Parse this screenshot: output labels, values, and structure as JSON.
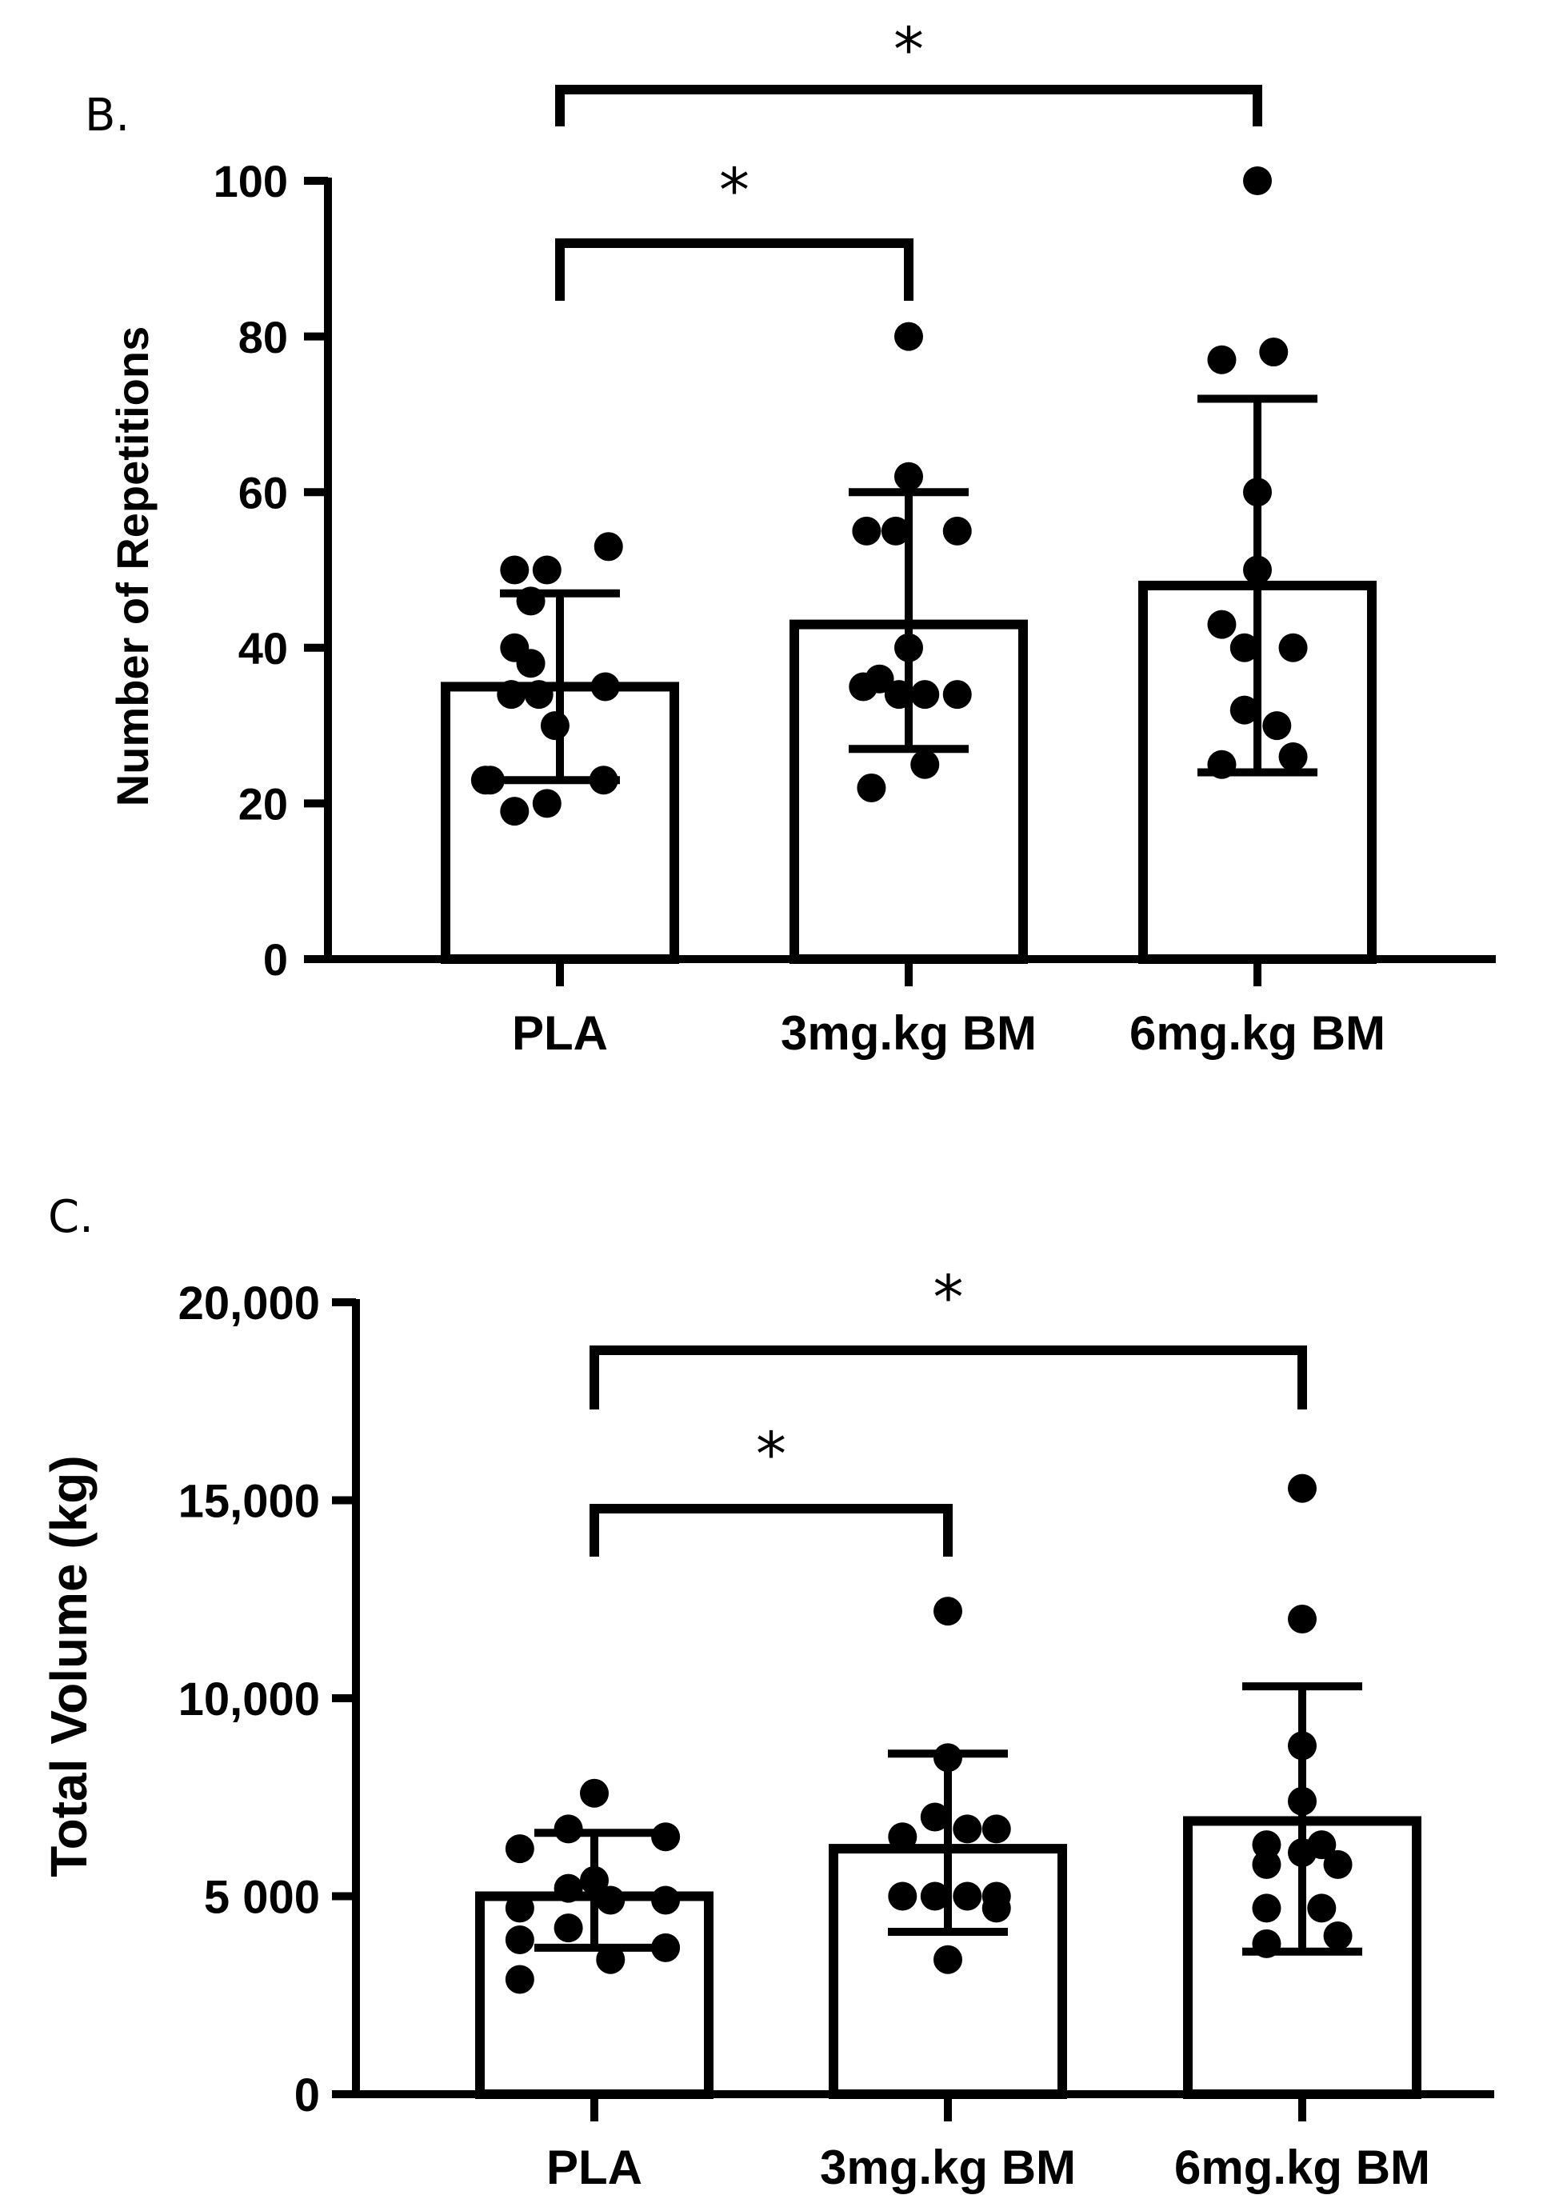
{
  "chart_data": [
    {
      "type": "bar",
      "panel_label": "B.",
      "title": "",
      "xlabel": "",
      "ylabel": "Number of Repetitions",
      "ylim": [
        0,
        100
      ],
      "yticks": [
        0,
        20,
        40,
        60,
        80,
        100
      ],
      "ytick_labels": [
        "0",
        "20",
        "40",
        "60",
        "80",
        "100"
      ],
      "grid": false,
      "categories": [
        "PLA",
        "3mg.kg BM",
        "6mg.kg BM"
      ],
      "means": [
        35,
        43,
        48
      ],
      "sd_upper": [
        47,
        60,
        72
      ],
      "sd_lower": [
        23,
        27,
        24
      ],
      "points": [
        [
          [
            -0.46,
            23
          ],
          [
            -0.28,
            50
          ],
          [
            -0.18,
            46
          ],
          [
            -0.08,
            50
          ],
          [
            0.3,
            53
          ],
          [
            -0.28,
            40
          ],
          [
            -0.18,
            38
          ],
          [
            -0.3,
            34
          ],
          [
            -0.13,
            34
          ],
          [
            0.28,
            35
          ],
          [
            -0.03,
            30
          ],
          [
            -0.28,
            19
          ],
          [
            -0.08,
            20
          ],
          [
            0.27,
            23
          ],
          [
            -0.43,
            23
          ]
        ],
        [
          [
            -0.28,
            35
          ],
          [
            -0.18,
            36
          ],
          [
            -0.26,
            55
          ],
          [
            -0.08,
            55
          ],
          [
            0.3,
            55
          ],
          [
            0,
            62
          ],
          [
            0,
            40
          ],
          [
            -0.06,
            34
          ],
          [
            0.1,
            34
          ],
          [
            0.3,
            34
          ],
          [
            -0.23,
            22
          ],
          [
            0.1,
            25
          ],
          [
            0,
            80
          ]
        ],
        [
          [
            0,
            100
          ],
          [
            -0.22,
            77
          ],
          [
            0.1,
            78
          ],
          [
            0,
            60
          ],
          [
            0,
            50
          ],
          [
            -0.22,
            43
          ],
          [
            -0.08,
            40
          ],
          [
            0.22,
            40
          ],
          [
            -0.08,
            32
          ],
          [
            0.12,
            30
          ],
          [
            -0.22,
            25
          ],
          [
            0.22,
            26
          ]
        ]
      ],
      "significance": [
        {
          "from": "PLA",
          "to": "6mg.kg BM",
          "label": "*"
        },
        {
          "from": "PLA",
          "to": "3mg.kg BM",
          "label": "*"
        }
      ]
    },
    {
      "type": "bar",
      "panel_label": "C.",
      "title": "",
      "xlabel": "",
      "ylabel": "Total Volume (kg)",
      "ylim": [
        0,
        20000
      ],
      "yticks": [
        0,
        5000,
        10000,
        15000,
        20000
      ],
      "ytick_labels": [
        "0",
        "5 000",
        "10,000",
        "15,000",
        "20,000"
      ],
      "grid": false,
      "categories": [
        "PLA",
        "3mg.kg BM",
        "6mg.kg BM"
      ],
      "means": [
        5000,
        6200,
        6900
      ],
      "sd_upper": [
        6600,
        8600,
        10300
      ],
      "sd_lower": [
        3700,
        4100,
        3600
      ],
      "points": [
        [
          [
            -0.46,
            6200
          ],
          [
            0,
            7600
          ],
          [
            -0.16,
            6700
          ],
          [
            0.44,
            6500
          ],
          [
            -0.46,
            4700
          ],
          [
            -0.16,
            5200
          ],
          [
            0,
            5400
          ],
          [
            0.1,
            4900
          ],
          [
            0.44,
            4900
          ],
          [
            -0.46,
            3900
          ],
          [
            -0.16,
            4200
          ],
          [
            0.44,
            3700
          ],
          [
            -0.46,
            2900
          ],
          [
            0.1,
            3400
          ]
        ],
        [
          [
            -0.28,
            6500
          ],
          [
            -0.08,
            7000
          ],
          [
            0.12,
            6700
          ],
          [
            0.3,
            6700
          ],
          [
            0,
            8500
          ],
          [
            -0.28,
            5000
          ],
          [
            -0.08,
            5000
          ],
          [
            0.12,
            5000
          ],
          [
            0.3,
            5000
          ],
          [
            0.3,
            4700
          ],
          [
            0,
            3400
          ],
          [
            0,
            12200
          ]
        ],
        [
          [
            0,
            15300
          ],
          [
            0,
            12000
          ],
          [
            0,
            8800
          ],
          [
            0,
            7400
          ],
          [
            -0.22,
            6300
          ],
          [
            0.12,
            6300
          ],
          [
            -0.22,
            5800
          ],
          [
            0.22,
            5800
          ],
          [
            -0.22,
            4700
          ],
          [
            0.12,
            4700
          ],
          [
            -0.22,
            3800
          ],
          [
            0.22,
            4000
          ],
          [
            0,
            6100
          ]
        ]
      ],
      "significance": [
        {
          "from": "PLA",
          "to": "6mg.kg BM",
          "label": "*"
        },
        {
          "from": "PLA",
          "to": "3mg.kg BM",
          "label": "*"
        }
      ]
    }
  ]
}
